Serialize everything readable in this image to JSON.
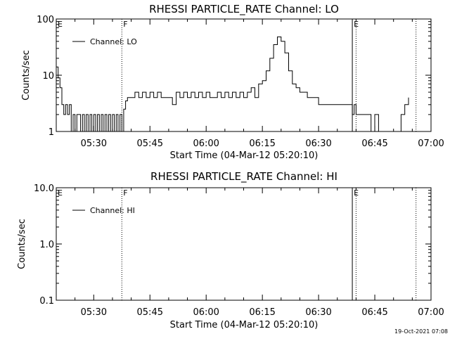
{
  "footer": {
    "timestamp": "19-Oct-2021 07:08"
  },
  "chart_data": [
    {
      "type": "line",
      "title": "RHESSI PARTICLE_RATE Channel: LO",
      "xlabel": "Start Time (04-Mar-12 05:20:10)",
      "ylabel": "Counts/sec",
      "yscale": "log",
      "ylim": [
        1,
        100
      ],
      "ytick_labels": [
        "1",
        "10",
        "100"
      ],
      "xlim_min": [
        20,
        120
      ],
      "xtick_labels": [
        "05:30",
        "05:45",
        "06:00",
        "06:15",
        "06:30",
        "06:45",
        "07:00"
      ],
      "legend": {
        "label": "Channel: LO",
        "position": "top-left"
      },
      "markers": [
        {
          "label": "E",
          "x_min": 20,
          "style": "solid"
        },
        {
          "label": "F",
          "x_min": 37.5,
          "style": "dotted"
        },
        {
          "label": "E",
          "x_min": 99,
          "style": "solid"
        },
        {
          "label": "",
          "x_min": 100,
          "style": "dotted"
        },
        {
          "label": "",
          "x_min": 116,
          "style": "dotted"
        }
      ],
      "series": [
        {
          "name": "Channel: LO",
          "x_min": [
            20,
            20.5,
            21,
            21.5,
            22,
            22.5,
            23,
            23.5,
            24,
            24.5,
            25,
            25.5,
            26,
            26.5,
            27,
            27.5,
            28,
            28.5,
            29,
            29.5,
            30,
            30.5,
            31,
            31.5,
            32,
            32.5,
            33,
            33.5,
            34,
            34.5,
            35,
            35.5,
            36,
            36.5,
            37,
            37.5,
            38,
            38.5,
            39,
            40,
            41,
            42,
            43,
            44,
            45,
            46,
            47,
            48,
            49,
            50,
            51,
            52,
            53,
            54,
            55,
            56,
            57,
            58,
            59,
            60,
            61,
            62,
            63,
            64,
            65,
            66,
            67,
            68,
            69,
            70,
            71,
            72,
            73,
            74,
            75,
            76,
            77,
            78,
            79,
            80,
            81,
            82,
            83,
            84,
            85,
            86,
            87,
            88,
            89,
            90,
            91,
            92,
            93,
            94,
            95,
            96,
            97,
            98,
            99,
            99.5,
            100,
            100.5,
            101,
            102,
            103,
            104,
            105,
            106,
            107,
            108,
            109,
            110,
            111,
            112,
            113,
            114
          ],
          "counts_per_sec": [
            14,
            9,
            6,
            3,
            2,
            3,
            2,
            3,
            1,
            2,
            1,
            2,
            2,
            1,
            2,
            1,
            2,
            1,
            2,
            1,
            2,
            1,
            2,
            1,
            2,
            1,
            2,
            1,
            2,
            1,
            2,
            1,
            2,
            1,
            2,
            1,
            2.5,
            3.5,
            4,
            4,
            5,
            4,
            5,
            4,
            5,
            4,
            5,
            4,
            4,
            4,
            3,
            5,
            4,
            5,
            4,
            5,
            4,
            5,
            4,
            5,
            4,
            4,
            5,
            4,
            5,
            4,
            5,
            4,
            5,
            4,
            5,
            6,
            4,
            7,
            8,
            12,
            20,
            35,
            48,
            40,
            25,
            12,
            7,
            6,
            5,
            5,
            4,
            4,
            4,
            3,
            3,
            3,
            3,
            3,
            3,
            3,
            3,
            3,
            2,
            3,
            2,
            2,
            2,
            2,
            2,
            1,
            2,
            1,
            1,
            1,
            1,
            1,
            1,
            2,
            3,
            4
          ]
        }
      ]
    },
    {
      "type": "line",
      "title": "RHESSI PARTICLE_RATE Channel: HI",
      "xlabel": "Start Time (04-Mar-12 05:20:10)",
      "ylabel": "Counts/sec",
      "yscale": "log",
      "ylim": [
        0.1,
        10
      ],
      "ytick_labels": [
        "0.1",
        "1.0",
        "10.0"
      ],
      "xlim_min": [
        20,
        120
      ],
      "xtick_labels": [
        "05:30",
        "05:45",
        "06:00",
        "06:15",
        "06:30",
        "06:45",
        "07:00"
      ],
      "legend": {
        "label": "Channel: HI",
        "position": "top-left"
      },
      "markers": [
        {
          "label": "E",
          "x_min": 20,
          "style": "solid"
        },
        {
          "label": "F",
          "x_min": 37.5,
          "style": "dotted"
        },
        {
          "label": "E",
          "x_min": 99,
          "style": "solid"
        },
        {
          "label": "",
          "x_min": 100,
          "style": "dotted"
        },
        {
          "label": "",
          "x_min": 116,
          "style": "dotted"
        }
      ],
      "series": [
        {
          "name": "Channel: HI",
          "x_min": [],
          "counts_per_sec": []
        }
      ]
    }
  ]
}
